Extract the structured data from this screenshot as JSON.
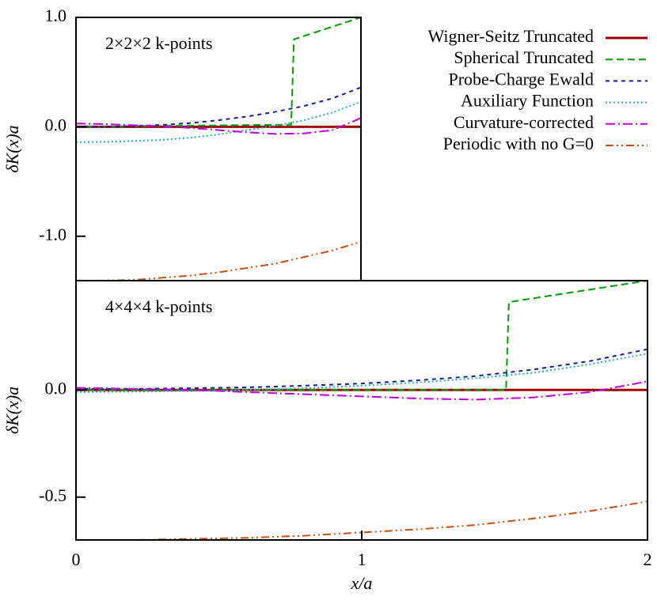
{
  "chart_data": [
    {
      "type": "line",
      "annotation": "2×2×2 k-points",
      "ylabel": "δK(x)a",
      "legend": "upper right",
      "xlim": [
        0,
        1
      ],
      "ylim": [
        -1.406,
        1.0
      ],
      "yticks": [
        {
          "value": -1.0,
          "label": "-1.0"
        },
        {
          "value": 0.0,
          "label": "0.0"
        },
        {
          "value": 1.0,
          "label": "1.0"
        }
      ],
      "series": [
        {
          "name": "Wigner-Seitz Truncated",
          "color": "#a00000",
          "dash": "none",
          "width": 3,
          "x": [
            0,
            1
          ],
          "values": [
            0,
            0
          ]
        },
        {
          "name": "Spherical Truncated",
          "color": "#00a000",
          "dash": "9,5",
          "width": 2,
          "x": [
            0,
            0.755,
            0.765,
            1
          ],
          "values": [
            0,
            0.02,
            0.8,
            1.0
          ]
        },
        {
          "name": "Probe-Charge Ewald",
          "color": "#1a1aa0",
          "dash": "5,5",
          "width": 2,
          "x": [
            0,
            0.1,
            0.2,
            0.3,
            0.4,
            0.5,
            0.6,
            0.7,
            0.8,
            0.9,
            1
          ],
          "values": [
            0,
            0.001,
            0.006,
            0.017,
            0.034,
            0.06,
            0.094,
            0.137,
            0.19,
            0.26,
            0.36
          ]
        },
        {
          "name": "Auxiliary Function",
          "color": "#20b0b8",
          "dash": "2,3",
          "width": 2,
          "x": [
            0,
            0.1,
            0.2,
            0.3,
            0.4,
            0.5,
            0.6,
            0.7,
            0.8,
            0.9,
            1
          ],
          "values": [
            -0.14,
            -0.138,
            -0.13,
            -0.12,
            -0.1,
            -0.07,
            -0.03,
            0.01,
            0.06,
            0.13,
            0.23
          ]
        },
        {
          "name": "Curvature-corrected",
          "color": "#c000e0",
          "dash": "12,4,2,4",
          "width": 2,
          "x": [
            0,
            0.1,
            0.2,
            0.3,
            0.4,
            0.5,
            0.6,
            0.7,
            0.8,
            0.9,
            1
          ],
          "values": [
            0.03,
            0.025,
            0.015,
            0.005,
            -0.01,
            -0.03,
            -0.05,
            -0.065,
            -0.06,
            -0.03,
            0.08
          ]
        },
        {
          "name": "Periodic with no G=0",
          "color": "#c85010",
          "dash": "10,4,2,4,2,4",
          "width": 2,
          "x": [
            0,
            0.1,
            0.2,
            0.3,
            0.4,
            0.5,
            0.6,
            0.7,
            0.8,
            0.9,
            1
          ],
          "values": [
            -1.405,
            -1.405,
            -1.4,
            -1.38,
            -1.36,
            -1.33,
            -1.29,
            -1.25,
            -1.19,
            -1.13,
            -1.05
          ]
        }
      ]
    },
    {
      "type": "line",
      "annotation": "4×4×4 k-points",
      "ylabel": "δK(x)a",
      "xlabel": "x/a",
      "xlim": [
        0,
        2
      ],
      "ylim": [
        -0.7,
        0.51
      ],
      "xticks": [
        0,
        1,
        2
      ],
      "yticks": [
        {
          "value": -0.5,
          "label": "-0.5"
        },
        {
          "value": 0.0,
          "label": "0.0"
        }
      ],
      "series": [
        {
          "color": "#a00000",
          "dash": "none",
          "width": 3,
          "x": [
            0,
            2
          ],
          "values": [
            0,
            0
          ]
        },
        {
          "color": "#00a000",
          "dash": "9,5",
          "width": 2,
          "x": [
            0,
            1.505,
            1.515,
            2
          ],
          "values": [
            0,
            0,
            0.41,
            0.51
          ]
        },
        {
          "color": "#1a1aa0",
          "dash": "5,5",
          "width": 2,
          "x": [
            0,
            0.2,
            0.4,
            0.6,
            0.8,
            1,
            1.2,
            1.4,
            1.6,
            1.8,
            2
          ],
          "values": [
            0.005,
            0.005,
            0.008,
            0.012,
            0.02,
            0.03,
            0.045,
            0.065,
            0.095,
            0.135,
            0.19
          ]
        },
        {
          "color": "#20b0b8",
          "dash": "2,3",
          "width": 2,
          "x": [
            0,
            0.2,
            0.4,
            0.6,
            0.8,
            1,
            1.2,
            1.4,
            1.6,
            1.8,
            2
          ],
          "values": [
            -0.01,
            -0.008,
            -0.005,
            0,
            0.008,
            0.02,
            0.035,
            0.055,
            0.08,
            0.12,
            0.17
          ]
        },
        {
          "color": "#c000e0",
          "dash": "12,4,2,4",
          "width": 2,
          "x": [
            0,
            0.2,
            0.4,
            0.6,
            0.8,
            1,
            1.2,
            1.4,
            1.6,
            1.8,
            2
          ],
          "values": [
            0.01,
            0.005,
            0,
            -0.01,
            -0.02,
            -0.03,
            -0.04,
            -0.045,
            -0.035,
            -0.01,
            0.04
          ]
        },
        {
          "color": "#c85010",
          "dash": "10,4,2,4,2,4",
          "width": 2,
          "x": [
            0,
            0.2,
            0.4,
            0.6,
            0.8,
            1,
            1.2,
            1.4,
            1.6,
            1.8,
            2
          ],
          "values": [
            -0.7,
            -0.7,
            -0.695,
            -0.69,
            -0.68,
            -0.665,
            -0.65,
            -0.63,
            -0.6,
            -0.565,
            -0.52
          ]
        }
      ]
    }
  ]
}
